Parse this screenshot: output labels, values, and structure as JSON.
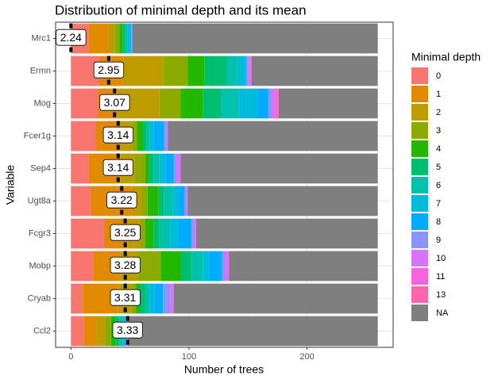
{
  "chart_data": {
    "type": "stacked_barh",
    "title": "Distribution of minimal depth and its mean",
    "x_label": "Number of trees",
    "y_label": "Variable",
    "legend_title": "Minimal depth",
    "categories": [
      "Mrc1",
      "Ermn",
      "Mog",
      "Fcer1g",
      "Sep4",
      "Ugt8a",
      "Fcgr3",
      "Mobp",
      "Cryab",
      "Ccl2"
    ],
    "series": [
      {
        "name": "0",
        "color": "#F8766D",
        "values": [
          15,
          24,
          23,
          21,
          15,
          17,
          28,
          19,
          10,
          11
        ]
      },
      {
        "name": "1",
        "color": "#E18A00",
        "values": [
          17,
          20,
          16,
          20,
          27,
          34,
          20,
          23,
          30,
          10
        ]
      },
      {
        "name": "2",
        "color": "#BE9C00",
        "values": [
          5,
          34,
          36,
          11,
          12,
          9,
          11,
          15,
          11,
          8
        ]
      },
      {
        "name": "3",
        "color": "#8CAB00",
        "values": [
          4,
          21,
          18,
          4,
          9,
          5,
          4,
          19,
          4,
          5
        ]
      },
      {
        "name": "4",
        "color": "#24B700",
        "values": [
          3,
          14,
          19,
          5,
          3,
          9,
          7,
          17,
          3,
          4
        ]
      },
      {
        "name": "5",
        "color": "#00BE70",
        "values": [
          2,
          19,
          15,
          3,
          4,
          5,
          5,
          9,
          5,
          3
        ]
      },
      {
        "name": "6",
        "color": "#00C1AB",
        "values": [
          2,
          9,
          15,
          3,
          5,
          7,
          9,
          10,
          3,
          3
        ]
      },
      {
        "name": "7",
        "color": "#00BBDA",
        "values": [
          2,
          7,
          16,
          3,
          5,
          5,
          7,
          5,
          5,
          2
        ]
      },
      {
        "name": "8",
        "color": "#00ACFC",
        "values": [
          1,
          1,
          9,
          9,
          7,
          5,
          11,
          11,
          7,
          1
        ]
      },
      {
        "name": "9",
        "color": "#8B93FF",
        "values": [
          1,
          1,
          3,
          2,
          2,
          2,
          2,
          2,
          6,
          1
        ]
      },
      {
        "name": "10",
        "color": "#D575FE",
        "values": [
          0,
          2,
          3,
          1,
          4,
          1,
          2,
          3,
          3,
          0
        ]
      },
      {
        "name": "11",
        "color": "#F962DD",
        "values": [
          0,
          1,
          2,
          0,
          0,
          0,
          0,
          1,
          0,
          0
        ]
      },
      {
        "name": "13",
        "color": "#FF65AC",
        "values": [
          0,
          0,
          1,
          0,
          0,
          0,
          0,
          0,
          0,
          0
        ]
      },
      {
        "name": "NA",
        "color": "#7F7F7F",
        "values": [
          208,
          107,
          84,
          178,
          167,
          161,
          154,
          126,
          173,
          212
        ]
      }
    ],
    "means": [
      2.24,
      2.95,
      3.07,
      3.14,
      3.14,
      3.22,
      3.25,
      3.28,
      3.31,
      3.33
    ],
    "mean_marks": [
      0,
      32,
      37,
      40,
      40,
      43,
      46,
      46,
      46,
      48
    ],
    "xlim": [
      -13,
      273
    ],
    "xticks": [
      0,
      100,
      200
    ],
    "minor_xticks": [
      50,
      150,
      250
    ],
    "grid": true,
    "legend": "right"
  }
}
